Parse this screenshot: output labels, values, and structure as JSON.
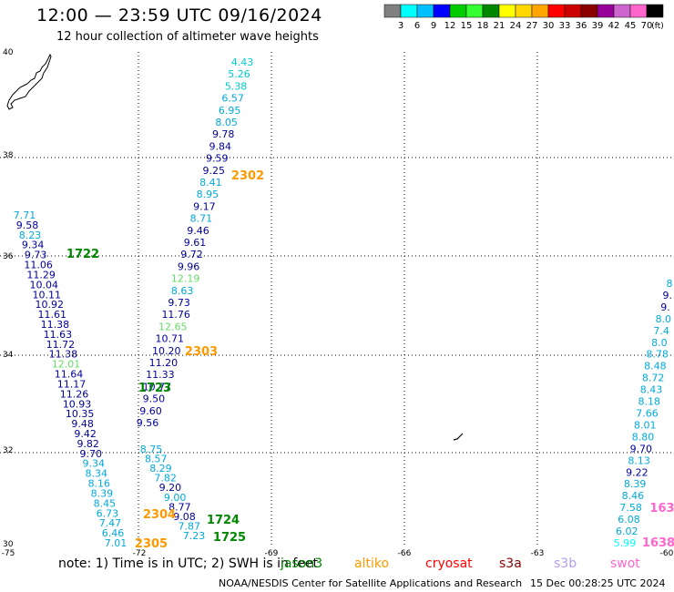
{
  "title": "12:00 — 23:59 UTC 09/16/2024",
  "subtitle": "12 hour collection of altimeter wave heights",
  "colorbar": {
    "colors": [
      "#808080",
      "#00ffff",
      "#00bfff",
      "#0000ff",
      "#00cc00",
      "#33ff33",
      "#008800",
      "#ffff00",
      "#ffd700",
      "#ffa500",
      "#ff0000",
      "#cc0000",
      "#8b0000",
      "#990099",
      "#cc66cc",
      "#ff66cc",
      "#000000"
    ],
    "labels": [
      "3",
      "6",
      "9",
      "12",
      "15",
      "18",
      "21",
      "24",
      "27",
      "30",
      "33",
      "36",
      "39",
      "42",
      "45",
      "70"
    ],
    "unit": "(ft)"
  },
  "axes": {
    "lat_labels": [
      "40",
      "38",
      "36",
      "34",
      "32",
      "30"
    ],
    "lon_labels": [
      "-75",
      "-72",
      "-69",
      "-66",
      "-63",
      "-60"
    ]
  },
  "pass_labels": [
    {
      "text": "2302",
      "color": "#ff9900"
    },
    {
      "text": "1722",
      "color": "#008800"
    },
    {
      "text": "2303",
      "color": "#ff9900"
    },
    {
      "text": "1723",
      "color": "#008800"
    },
    {
      "text": "2304",
      "color": "#ff9900"
    },
    {
      "text": "1724",
      "color": "#008800"
    },
    {
      "text": "1725",
      "color": "#008800"
    },
    {
      "text": "2305",
      "color": "#ff9900"
    },
    {
      "text": "163",
      "color": "#ff66cc"
    },
    {
      "text": "1638",
      "color": "#ff66cc"
    }
  ],
  "tracks": {
    "t2302": {
      "color": "#000099",
      "values": [
        "4.43",
        "5.26",
        "5.38",
        "6.57",
        "6.95",
        "8.05",
        "9.78",
        "9.84",
        "9.59",
        "9.25",
        "8.41",
        "8.95",
        "9.17",
        "8.71",
        "9.46",
        "9.61",
        "9.72",
        "9.96",
        "12.19",
        "8.63",
        "9.73",
        "11.76",
        "12.65",
        "10.71",
        "10.20",
        "11.20",
        "11.33",
        "10.77",
        "9.50",
        "9.60",
        "9.56"
      ]
    },
    "t2302_colors": [
      "#00cccc",
      "#00cccc",
      "#00cccc",
      "#00aadd",
      "#00aadd",
      "#00aadd",
      "#000099",
      "#000099",
      "#000099",
      "#000099",
      "#00aadd",
      "#00aadd",
      "#000099",
      "#00aadd",
      "#000099",
      "#000099",
      "#000099",
      "#000099",
      "#66dd66",
      "#00aadd",
      "#000099",
      "#000099",
      "#66dd66",
      "#000099",
      "#000099",
      "#000099",
      "#000099",
      "#000099",
      "#000099",
      "#000099",
      "#000099"
    ],
    "t1722": {
      "values": [
        "7.71",
        "9.58",
        "8.23",
        "9.34",
        "9.73",
        "11.06",
        "11.29",
        "10.04",
        "10.11",
        "10.92",
        "11.61",
        "11.38",
        "11.63",
        "11.72",
        "11.38",
        "12.01",
        "11.64",
        "11.17",
        "11.26",
        "10.93",
        "10.35",
        "9.48",
        "9.42",
        "9.82",
        "9.70",
        "9.34",
        "8.34",
        "8.16",
        "8.39",
        "8.45",
        "6.73",
        "7.47",
        "6.46",
        "7.01"
      ]
    },
    "t1722_colors": [
      "#00aadd",
      "#000099",
      "#00aadd",
      "#000099",
      "#000099",
      "#000099",
      "#000099",
      "#000099",
      "#000099",
      "#000099",
      "#000099",
      "#000099",
      "#000099",
      "#000099",
      "#000099",
      "#66dd66",
      "#000099",
      "#000099",
      "#000099",
      "#000099",
      "#000099",
      "#000099",
      "#000099",
      "#000099",
      "#000099",
      "#00aadd",
      "#00aadd",
      "#00aadd",
      "#00aadd",
      "#00aadd",
      "#00aadd",
      "#00aadd",
      "#00aadd",
      "#00aadd"
    ],
    "t2303": {
      "values": [
        "8.75",
        "8.57",
        "8.29",
        "7.82",
        "9.20",
        "9.00",
        "8.77",
        "9.08",
        "7.87",
        "7.23"
      ]
    },
    "t2303_colors": [
      "#00aadd",
      "#00aadd",
      "#00aadd",
      "#00aadd",
      "#000099",
      "#00aadd",
      "#000099",
      "#000099",
      "#00aadd",
      "#00aadd"
    ],
    "t_east": {
      "values": [
        "8",
        "9.",
        "9.",
        "8.0",
        "7.4",
        "8.0",
        "8.78",
        "8.48",
        "8.72",
        "8.43",
        "8.18",
        "7.66",
        "8.01",
        "8.80",
        "9.70",
        "8.13",
        "9.22",
        "8.39",
        "8.46",
        "7.58",
        "6.08",
        "6.02",
        "5.99"
      ]
    },
    "t_east_colors": [
      "#00aadd",
      "#000099",
      "#000099",
      "#00aadd",
      "#00aadd",
      "#00aadd",
      "#00aadd",
      "#00aadd",
      "#00aadd",
      "#00aadd",
      "#00aadd",
      "#00aadd",
      "#00aadd",
      "#00aadd",
      "#000099",
      "#00aadd",
      "#000099",
      "#00aadd",
      "#00aadd",
      "#00aadd",
      "#00aadd",
      "#00aadd",
      "#00ffff"
    ]
  },
  "note": {
    "prefix": "note:  1) Time is in UTC; 2) SWH is in feet",
    "jason": "jason3",
    "altika": "altiko",
    "cryosat": "cryosat",
    "s3a": "s3a",
    "s3b": "s3b",
    "swot": "swot"
  },
  "credit": "NOAA/NESDIS Center for Satellite Applications and Research",
  "timestamp": "15 Dec 00:28:25 UTC 2024"
}
